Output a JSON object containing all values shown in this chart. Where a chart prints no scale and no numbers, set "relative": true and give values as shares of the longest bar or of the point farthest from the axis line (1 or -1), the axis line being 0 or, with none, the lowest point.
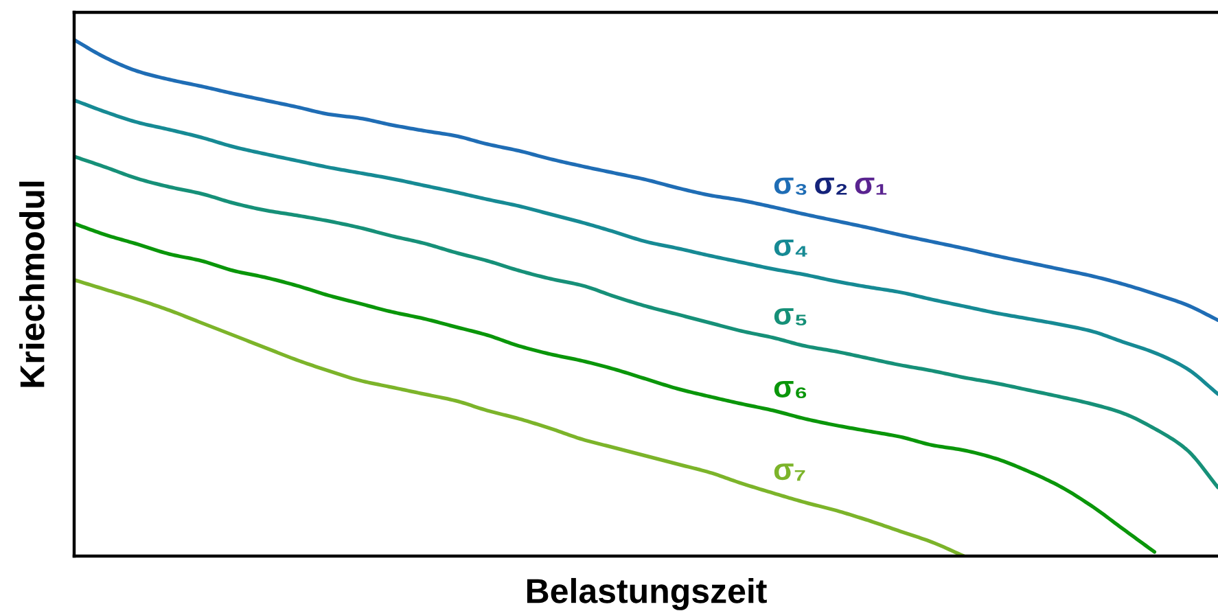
{
  "chart_data": {
    "type": "line",
    "xlabel": "Belastungszeit",
    "ylabel": "Kriechmodul",
    "relative": true,
    "categories": [
      null,
      null,
      null,
      null,
      null,
      null,
      null,
      null,
      null,
      null,
      null,
      null,
      null,
      null,
      null,
      null,
      null,
      null,
      null,
      null,
      null,
      null,
      null,
      null,
      null,
      null,
      null,
      null,
      null,
      null,
      null,
      null,
      null,
      null,
      null,
      null,
      null
    ],
    "series": [
      {
        "name": "σ₃",
        "color": "#1f6db5",
        "values": [
          1.0,
          0.965,
          0.939,
          0.923,
          0.91,
          0.896,
          0.883,
          0.87,
          0.856,
          0.848,
          0.835,
          0.824,
          0.814,
          0.798,
          0.785,
          0.769,
          0.755,
          0.742,
          0.729,
          0.713,
          0.699,
          0.689,
          0.676,
          0.662,
          0.649,
          0.636,
          0.622,
          0.609,
          0.596,
          0.582,
          0.569,
          0.556,
          0.543,
          0.527,
          0.508,
          0.487,
          0.457
        ]
      },
      {
        "name": "σ₂",
        "color": "#14237a",
        "values": [
          null,
          null,
          null,
          null,
          null,
          null,
          null,
          null,
          null,
          null,
          null,
          null,
          null,
          null,
          null,
          null,
          null,
          null,
          null,
          null,
          null,
          null,
          null,
          null,
          null,
          null,
          null,
          null,
          null,
          null,
          null,
          null,
          null,
          null,
          null,
          null,
          null
        ]
      },
      {
        "name": "σ₁",
        "color": "#5a2490",
        "values": [
          null,
          null,
          null,
          null,
          null,
          null,
          null,
          null,
          null,
          null,
          null,
          null,
          null,
          null,
          null,
          null,
          null,
          null,
          null,
          null,
          null,
          null,
          null,
          null,
          null,
          null,
          null,
          null,
          null,
          null,
          null,
          null,
          null,
          null,
          null,
          null,
          null
        ]
      },
      {
        "name": "σ₄",
        "color": "#168a94",
        "values": [
          0.883,
          0.86,
          0.84,
          0.826,
          0.811,
          0.793,
          0.779,
          0.766,
          0.753,
          0.742,
          0.731,
          0.718,
          0.705,
          0.691,
          0.678,
          0.662,
          0.646,
          0.628,
          0.609,
          0.596,
          0.582,
          0.569,
          0.556,
          0.545,
          0.532,
          0.521,
          0.511,
          0.497,
          0.484,
          0.471,
          0.46,
          0.449,
          0.436,
          0.415,
          0.394,
          0.364,
          0.314
        ]
      },
      {
        "name": "σ₅",
        "color": "#169078",
        "values": [
          0.774,
          0.753,
          0.731,
          0.715,
          0.702,
          0.684,
          0.67,
          0.66,
          0.649,
          0.636,
          0.62,
          0.606,
          0.588,
          0.572,
          0.553,
          0.537,
          0.524,
          0.503,
          0.484,
          0.468,
          0.452,
          0.436,
          0.423,
          0.407,
          0.396,
          0.383,
          0.37,
          0.359,
          0.346,
          0.335,
          0.322,
          0.309,
          0.295,
          0.277,
          0.247,
          0.207,
          0.133
        ]
      },
      {
        "name": "σ₆",
        "color": "#0a960a",
        "values": [
          0.644,
          0.622,
          0.604,
          0.585,
          0.572,
          0.553,
          0.54,
          0.524,
          0.505,
          0.489,
          0.473,
          0.46,
          0.444,
          0.428,
          0.407,
          0.391,
          0.378,
          0.362,
          0.343,
          0.324,
          0.309,
          0.295,
          0.282,
          0.266,
          0.253,
          0.242,
          0.231,
          0.215,
          0.205,
          0.189,
          0.165,
          0.136,
          0.098,
          0.053,
          0.008,
          null,
          null
        ]
      },
      {
        "name": "σ₇",
        "color": "#7cb42a",
        "values": [
          0.535,
          0.516,
          0.497,
          0.476,
          0.452,
          0.428,
          0.404,
          0.38,
          0.359,
          0.34,
          0.327,
          0.314,
          0.301,
          0.282,
          0.266,
          0.247,
          0.226,
          0.21,
          0.194,
          0.178,
          0.162,
          0.141,
          0.122,
          0.104,
          0.088,
          0.069,
          0.048,
          0.027,
          0.0,
          null,
          null,
          null,
          null,
          null,
          null,
          null,
          null
        ]
      }
    ]
  }
}
